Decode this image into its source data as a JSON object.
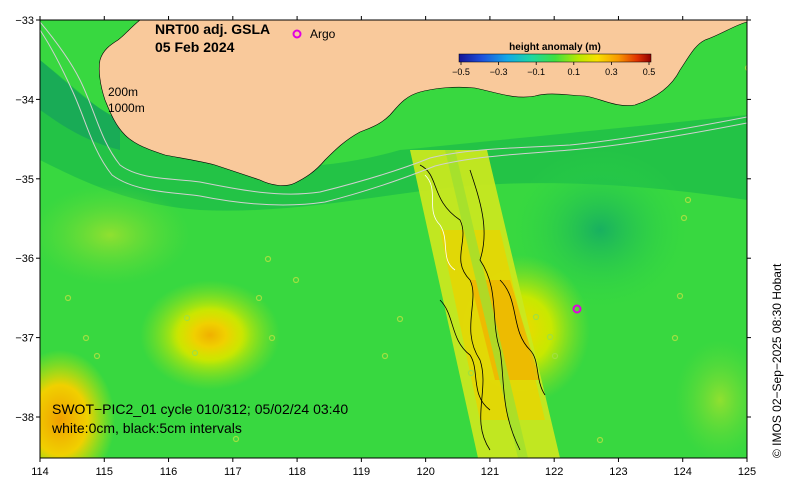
{
  "title": {
    "line1": "NRT00 adj. GSLA",
    "line2": "05 Feb 2024"
  },
  "legend": {
    "argo_label": "Argo"
  },
  "colorbar": {
    "title": "height anomaly (m)",
    "ticks": [
      "−0.5",
      "−0.3",
      "−0.1",
      "0.1",
      "0.3",
      "0.5"
    ],
    "colors": [
      "#1a1aa0",
      "#1e6ee0",
      "#18c0e8",
      "#30d890",
      "#50e040",
      "#c8e800",
      "#f8e000",
      "#f8a000",
      "#e04000",
      "#a00000"
    ]
  },
  "isobaths": {
    "a": "200m",
    "b": "1000m"
  },
  "swot": {
    "line1": "SWOT−PIC2_01 cycle 010/312; 05/02/24 03:40",
    "line2": "white:0cm, black:5cm intervals"
  },
  "axes": {
    "x_ticks": [
      "114",
      "115",
      "116",
      "117",
      "118",
      "119",
      "120",
      "121",
      "122",
      "123",
      "124",
      "125"
    ],
    "y_ticks": [
      "−33",
      "−34",
      "−35",
      "−36",
      "−37",
      "−38"
    ]
  },
  "credit": "© IMOS 02−Sep−2025 08:30 Hobart",
  "colors": {
    "land": "#f9c99b",
    "sea_base": "#30d840",
    "swath": "#c8e820",
    "argo": "#e000e0"
  }
}
